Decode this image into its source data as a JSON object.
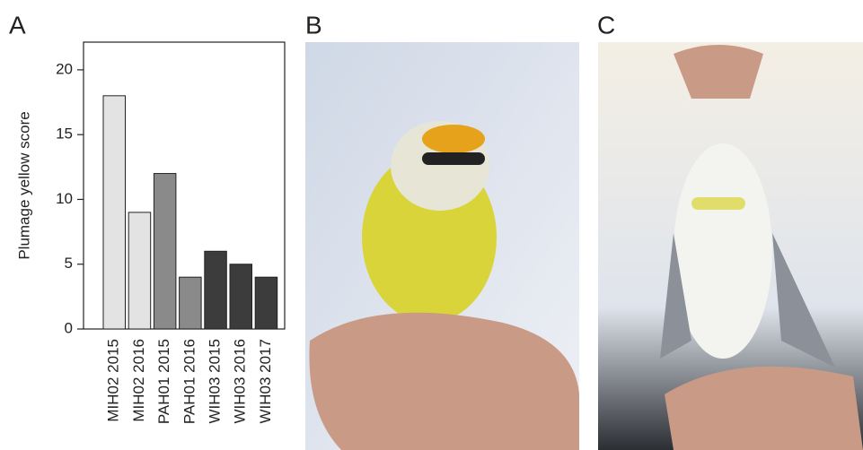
{
  "panel_labels": [
    "A",
    "B",
    "C"
  ],
  "chart_data": {
    "type": "bar",
    "y_label": "Plumage yellow score",
    "categories": [
      "MIH02 2015",
      "MIH02 2016",
      "PAH01 2015",
      "PAH01 2016",
      "WIH03 2015",
      "WIH03 2016",
      "WIH03 2017"
    ],
    "values": [
      18,
      9,
      12,
      4,
      6,
      5,
      4
    ],
    "colors": [
      "#e3e3e3",
      "#e3e3e3",
      "#8a8a8a",
      "#8a8a8a",
      "#3c3c3c",
      "#3c3c3c",
      "#3c3c3c"
    ],
    "ylim": [
      0,
      22
    ],
    "yticks": [
      0,
      5,
      10,
      15,
      20
    ]
  }
}
